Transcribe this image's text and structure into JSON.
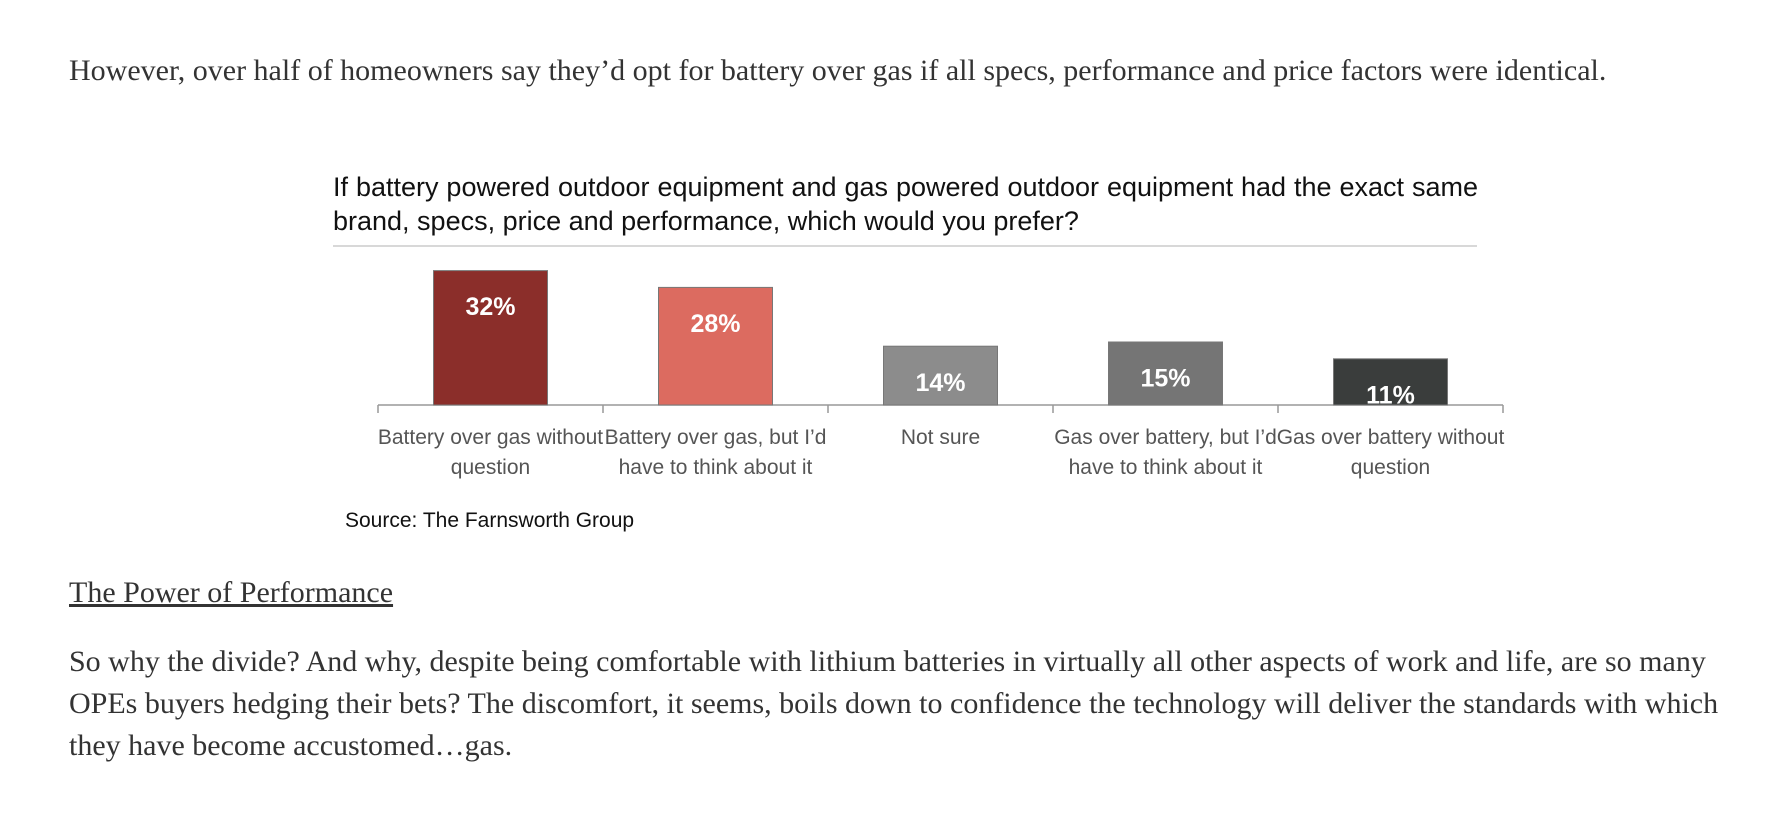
{
  "intro": "However, over half of homeowners say they’d opt for battery over gas if all specs, performance and price factors were identical.",
  "chart_data": {
    "type": "bar",
    "title": "If battery powered outdoor equipment and gas powered outdoor equipment had the exact same brand, specs, price and performance, which would you prefer?",
    "categories": [
      "Battery over gas without question",
      "Battery over gas, but I’d have to think about it",
      "Not sure",
      "Gas over battery, but I’d have to think about it",
      "Gas over battery without question"
    ],
    "values": [
      32,
      28,
      14,
      15,
      11
    ],
    "value_labels": [
      "32%",
      "28%",
      "14%",
      "15%",
      "11%"
    ],
    "colors": [
      "#8b2e2a",
      "#dc6b60",
      "#8c8c8c",
      "#757575",
      "#3a3d3c"
    ],
    "source": "Source: The Farnsworth Group"
  },
  "heading": "The Power of Performance",
  "paragraph": "So why the divide? And why, despite being comfortable with lithium batteries in virtually all other aspects of work and life, are so many OPEs buyers hedging their bets? The discomfort, it seems, boils down to confidence the technology will deliver the standards with which they have become accustomed…gas."
}
